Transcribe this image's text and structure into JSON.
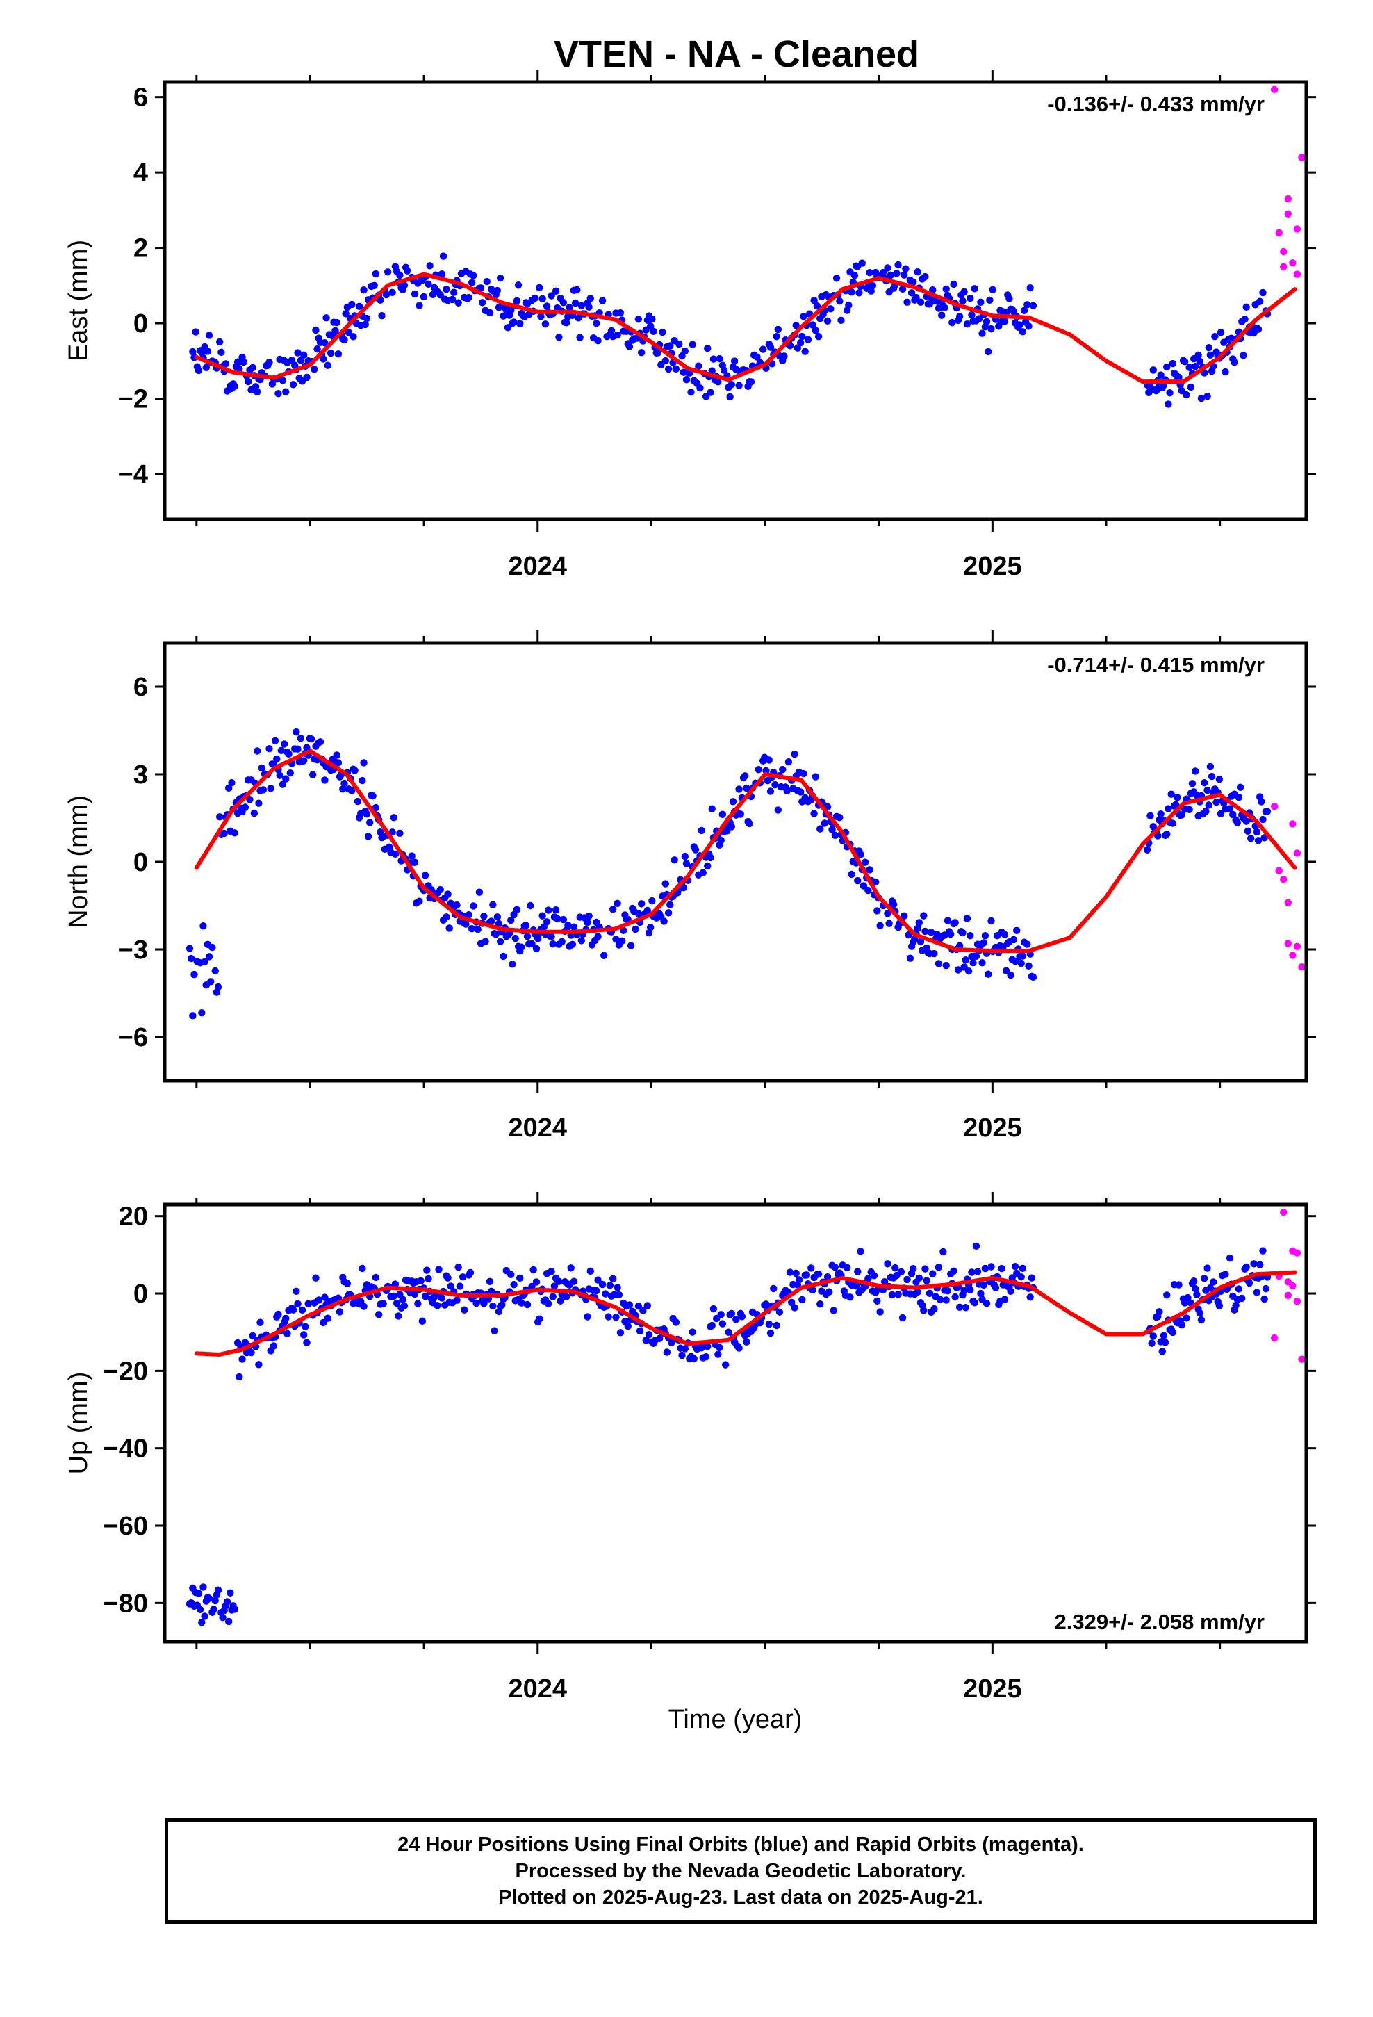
{
  "title": "VTEN  - NA - Cleaned",
  "xlabel": "Time (year)",
  "footer": {
    "lines": [
      "24 Hour Positions Using Final Orbits (blue) and Rapid Orbits (magenta).",
      "Processed by the Nevada Geodetic Laboratory.",
      "Plotted on 2025-Aug-23. Last data on 2025-Aug-21."
    ]
  },
  "colors": {
    "final_orbits": "#0000ff",
    "rapid_orbits": "#ff00ff",
    "fit_curve": "#ff0000",
    "frame": "#000000"
  },
  "chart_data": [
    {
      "type": "scatter",
      "ylabel": "East (mm)",
      "rate_label": "-0.136+/- 0.433 mm/yr",
      "xlim": [
        2023.18,
        2025.69
      ],
      "ylim": [
        -5.2,
        6.4
      ],
      "x_ticks": [
        "2024",
        "2025"
      ],
      "y_ticks": [
        -4,
        -2,
        0,
        2,
        4,
        6
      ],
      "fit": [
        [
          2023.25,
          -0.9
        ],
        [
          2023.33,
          -1.3
        ],
        [
          2023.42,
          -1.45
        ],
        [
          2023.5,
          -1.1
        ],
        [
          2023.58,
          -0.1
        ],
        [
          2023.67,
          1.0
        ],
        [
          2023.75,
          1.3
        ],
        [
          2023.83,
          1.05
        ],
        [
          2023.92,
          0.55
        ],
        [
          2024.0,
          0.3
        ],
        [
          2024.08,
          0.3
        ],
        [
          2024.17,
          0.1
        ],
        [
          2024.25,
          -0.5
        ],
        [
          2024.33,
          -1.2
        ],
        [
          2024.42,
          -1.5
        ],
        [
          2024.5,
          -1.1
        ],
        [
          2024.58,
          -0.1
        ],
        [
          2024.67,
          0.9
        ],
        [
          2024.75,
          1.2
        ],
        [
          2024.83,
          0.95
        ],
        [
          2024.92,
          0.5
        ],
        [
          2025.0,
          0.2
        ],
        [
          2025.08,
          0.15
        ],
        [
          2025.17,
          -0.3
        ],
        [
          2025.25,
          -1.0
        ],
        [
          2025.33,
          -1.55
        ],
        [
          2025.42,
          -1.55
        ],
        [
          2025.5,
          -0.9
        ],
        [
          2025.58,
          0.1
        ],
        [
          2025.67,
          0.95
        ]
      ],
      "rapid": [
        [
          2025.62,
          6.2
        ],
        [
          2025.63,
          2.4
        ],
        [
          2025.64,
          1.9
        ],
        [
          2025.65,
          3.3
        ],
        [
          2025.66,
          1.6
        ],
        [
          2025.67,
          1.3
        ],
        [
          2025.68,
          4.4
        ],
        [
          2025.65,
          2.9
        ],
        [
          2025.67,
          2.5
        ],
        [
          2025.64,
          1.5
        ]
      ]
    },
    {
      "type": "scatter",
      "ylabel": "North (mm)",
      "rate_label": "-0.714+/- 0.415 mm/yr",
      "xlim": [
        2023.18,
        2025.69
      ],
      "ylim": [
        -7.5,
        7.5
      ],
      "x_ticks": [
        "2024",
        "2025"
      ],
      "y_ticks": [
        -6,
        -3,
        0,
        3,
        6
      ],
      "fit": [
        [
          2023.25,
          -0.2
        ],
        [
          2023.33,
          1.8
        ],
        [
          2023.42,
          3.2
        ],
        [
          2023.5,
          3.8
        ],
        [
          2023.58,
          3.0
        ],
        [
          2023.67,
          1.0
        ],
        [
          2023.75,
          -0.9
        ],
        [
          2023.83,
          -1.9
        ],
        [
          2023.92,
          -2.3
        ],
        [
          2024.0,
          -2.4
        ],
        [
          2024.08,
          -2.4
        ],
        [
          2024.17,
          -2.3
        ],
        [
          2024.25,
          -1.8
        ],
        [
          2024.33,
          -0.5
        ],
        [
          2024.42,
          1.5
        ],
        [
          2024.5,
          3.0
        ],
        [
          2024.58,
          2.8
        ],
        [
          2024.67,
          1.0
        ],
        [
          2024.75,
          -1.2
        ],
        [
          2024.83,
          -2.5
        ],
        [
          2024.92,
          -3.0
        ],
        [
          2025.0,
          -3.05
        ],
        [
          2025.08,
          -3.05
        ],
        [
          2025.17,
          -2.6
        ],
        [
          2025.25,
          -1.2
        ],
        [
          2025.33,
          0.6
        ],
        [
          2025.42,
          2.0
        ],
        [
          2025.5,
          2.3
        ],
        [
          2025.58,
          1.4
        ],
        [
          2025.67,
          -0.3
        ]
      ],
      "rapid": [
        [
          2025.62,
          1.9
        ],
        [
          2025.63,
          -0.3
        ],
        [
          2025.64,
          -0.6
        ],
        [
          2025.65,
          -2.8
        ],
        [
          2025.66,
          -3.2
        ],
        [
          2025.67,
          -2.9
        ],
        [
          2025.68,
          -3.6
        ],
        [
          2025.66,
          1.3
        ],
        [
          2025.67,
          0.3
        ],
        [
          2025.65,
          -1.4
        ]
      ]
    },
    {
      "type": "scatter",
      "ylabel": "Up (mm)",
      "rate_label": "2.329+/- 2.058 mm/yr",
      "xlim": [
        2023.18,
        2025.69
      ],
      "ylim": [
        -90,
        23
      ],
      "x_ticks": [
        "2024",
        "2025"
      ],
      "y_ticks": [
        -80,
        -60,
        -40,
        -20,
        0,
        20
      ],
      "fit": [
        [
          2023.25,
          -15.5
        ],
        [
          2023.3,
          -15.8
        ],
        [
          2023.35,
          -14.5
        ],
        [
          2023.42,
          -10.5
        ],
        [
          2023.5,
          -5.5
        ],
        [
          2023.58,
          -1.5
        ],
        [
          2023.67,
          1.5
        ],
        [
          2023.75,
          1.0
        ],
        [
          2023.83,
          -0.5
        ],
        [
          2023.92,
          -0.5
        ],
        [
          2024.0,
          1.0
        ],
        [
          2024.08,
          0.5
        ],
        [
          2024.17,
          -3.5
        ],
        [
          2024.25,
          -9.0
        ],
        [
          2024.33,
          -13.0
        ],
        [
          2024.42,
          -12.0
        ],
        [
          2024.5,
          -5.0
        ],
        [
          2024.58,
          1.5
        ],
        [
          2024.67,
          4.0
        ],
        [
          2024.75,
          2.0
        ],
        [
          2024.83,
          1.5
        ],
        [
          2024.92,
          2.5
        ],
        [
          2025.0,
          4.0
        ],
        [
          2025.08,
          2.0
        ],
        [
          2025.17,
          -5.0
        ],
        [
          2025.25,
          -10.5
        ],
        [
          2025.33,
          -10.5
        ],
        [
          2025.42,
          -5.0
        ],
        [
          2025.5,
          1.5
        ],
        [
          2025.58,
          5.0
        ],
        [
          2025.67,
          5.5
        ]
      ],
      "rapid": [
        [
          2025.62,
          -11.5
        ],
        [
          2025.63,
          4.5
        ],
        [
          2025.64,
          21.0
        ],
        [
          2025.65,
          -0.5
        ],
        [
          2025.66,
          11.0
        ],
        [
          2025.67,
          10.5
        ],
        [
          2025.68,
          -17.0
        ],
        [
          2025.65,
          3.0
        ],
        [
          2025.67,
          -2.0
        ],
        [
          2025.66,
          2.0
        ]
      ]
    }
  ]
}
